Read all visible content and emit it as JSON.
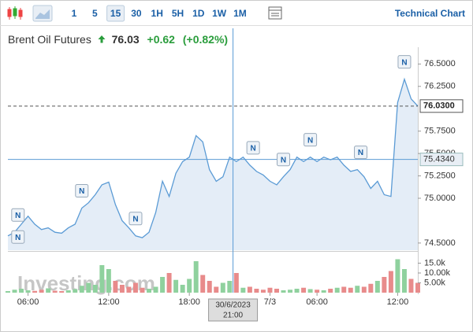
{
  "toolbar": {
    "intervals": [
      "1",
      "5",
      "15",
      "30",
      "1H",
      "5H",
      "1D",
      "1W",
      "1M"
    ],
    "active_index": 2,
    "link": "Technical Chart"
  },
  "watermark": "Investing.com",
  "chart_data": [
    {
      "type": "area",
      "title": "Brent Oil Futures",
      "quote": {
        "price": 76.03,
        "change": {
          "value": 0.62,
          "label": "+0.62"
        },
        "change_pct": {
          "value": 0.82,
          "label": "(+0.82%)"
        }
      },
      "x": [
        0,
        2,
        4,
        6,
        8,
        10,
        12,
        14,
        16,
        18,
        20,
        22,
        24,
        26,
        28,
        30,
        32,
        34,
        36,
        38,
        40,
        42,
        44,
        46,
        48,
        50,
        52,
        54,
        56,
        58,
        60,
        62,
        64,
        66,
        68,
        70,
        72,
        74,
        76,
        78,
        80,
        82,
        84,
        86,
        88,
        90,
        92,
        94,
        96,
        98,
        100,
        102,
        104,
        106,
        108,
        110,
        112,
        114,
        116,
        118,
        120,
        122
      ],
      "values": [
        74.58,
        74.62,
        74.71,
        74.8,
        74.71,
        74.65,
        74.67,
        74.62,
        74.61,
        74.67,
        74.71,
        74.89,
        74.95,
        75.04,
        75.15,
        75.18,
        74.93,
        74.75,
        74.67,
        74.58,
        74.56,
        74.62,
        74.84,
        75.19,
        75.02,
        75.28,
        75.41,
        75.46,
        75.7,
        75.63,
        75.32,
        75.19,
        75.24,
        75.46,
        75.41,
        75.46,
        75.37,
        75.3,
        75.26,
        75.19,
        75.15,
        75.24,
        75.32,
        75.46,
        75.41,
        75.46,
        75.41,
        75.46,
        75.43,
        75.46,
        75.37,
        75.3,
        75.32,
        75.24,
        75.11,
        75.19,
        75.04,
        75.02,
        76.07,
        76.33,
        76.11,
        76.03
      ],
      "color": "#5b9bd5",
      "fill": "#e4edf7",
      "xlim": [
        0,
        122
      ],
      "ylim": [
        74.42,
        76.67
      ],
      "xticks": [
        {
          "value": 6,
          "label": "06:00"
        },
        {
          "value": 30,
          "label": "12:00"
        },
        {
          "value": 54,
          "label": "18:00"
        },
        {
          "value": 78,
          "label": "7/3"
        },
        {
          "value": 92,
          "label": "06:00"
        },
        {
          "value": 116,
          "label": "12:00"
        }
      ],
      "yticks": [
        {
          "value": 74.5,
          "label": "74.5000"
        },
        {
          "value": 75,
          "label": "75.0000"
        },
        {
          "value": 75.25,
          "label": "75.2500"
        },
        {
          "value": 75.5,
          "label": "75.5000"
        },
        {
          "value": 75.75,
          "label": "75.7500"
        },
        {
          "value": 76.25,
          "label": "76.2500"
        },
        {
          "value": 76.5,
          "label": "76.5000"
        }
      ],
      "last_line": {
        "value": 76.03,
        "label": "76.0300"
      },
      "crosshair": {
        "x": 67,
        "date": "30/6/2023",
        "time": "21:00",
        "y": {
          "value": 75.434,
          "label": "75.4340"
        }
      },
      "news": {
        "label": "N",
        "x": [
          3,
          3,
          22,
          38,
          73,
          82,
          90,
          105,
          118
        ]
      }
    },
    {
      "type": "bar",
      "x": [
        0,
        2,
        4,
        6,
        8,
        10,
        12,
        14,
        16,
        18,
        20,
        22,
        24,
        26,
        28,
        30,
        32,
        34,
        36,
        38,
        40,
        42,
        44,
        46,
        48,
        50,
        52,
        54,
        56,
        58,
        60,
        62,
        64,
        66,
        68,
        70,
        72,
        74,
        76,
        78,
        80,
        82,
        84,
        86,
        88,
        90,
        92,
        94,
        96,
        98,
        100,
        102,
        104,
        106,
        108,
        110,
        112,
        114,
        116,
        118,
        120,
        122
      ],
      "values": [
        800,
        1500,
        2000,
        1200,
        900,
        1500,
        2200,
        1000,
        800,
        1200,
        1800,
        3500,
        5000,
        4000,
        14000,
        12000,
        6000,
        4000,
        3000,
        5000,
        2500,
        2000,
        3000,
        8000,
        10000,
        6500,
        4000,
        7000,
        16000,
        9000,
        6000,
        3000,
        5000,
        6000,
        10000,
        2500,
        3000,
        2000,
        1500,
        2500,
        2000,
        1200,
        1500,
        2000,
        2500,
        1800,
        1500,
        1200,
        2000,
        2500,
        3000,
        2500,
        3500,
        3000,
        4500,
        6000,
        8000,
        11000,
        17000,
        12000,
        7000,
        5000
      ],
      "up_color": "#8fd19e",
      "down_color": "#e88b8b",
      "ylim": [
        0,
        20000
      ],
      "yticks": [
        {
          "value": 5000,
          "label": "5.00k"
        },
        {
          "value": 10000,
          "label": "10.00k"
        },
        {
          "value": 15000,
          "label": "15.0k"
        }
      ]
    }
  ]
}
